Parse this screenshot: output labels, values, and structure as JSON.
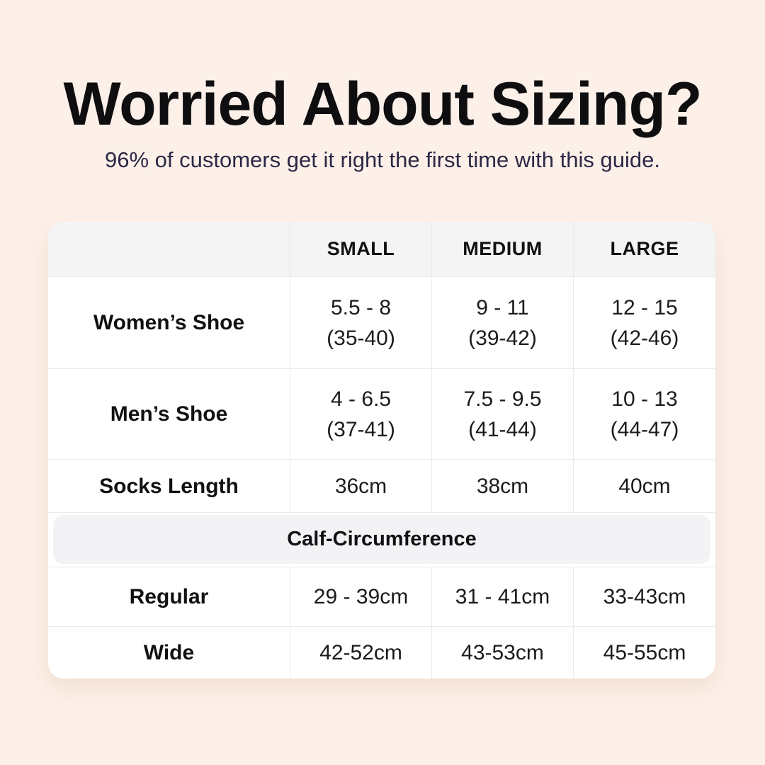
{
  "header": {
    "title": "Worried About Sizing?",
    "subtitle": "96% of customers get it right the first time with this guide."
  },
  "table": {
    "col_headers": [
      "SMALL",
      "MEDIUM",
      "LARGE"
    ],
    "rows": [
      {
        "label": "Women’s Shoe",
        "cells": [
          {
            "l1": "5.5 - 8",
            "l2": "(35-40)"
          },
          {
            "l1": "9 - 11",
            "l2": "(39-42)"
          },
          {
            "l1": "12 - 15",
            "l2": "(42-46)"
          }
        ]
      },
      {
        "label": "Men’s Shoe",
        "cells": [
          {
            "l1": "4 - 6.5",
            "l2": "(37-41)"
          },
          {
            "l1": "7.5 - 9.5",
            "l2": "(41-44)"
          },
          {
            "l1": "10 - 13",
            "l2": "(44-47)"
          }
        ]
      },
      {
        "label": "Socks Length",
        "cells": [
          {
            "l1": "36cm"
          },
          {
            "l1": "38cm"
          },
          {
            "l1": "40cm"
          }
        ]
      }
    ],
    "section_header": "Calf-Circumference",
    "calf_rows": [
      {
        "label": "Regular",
        "cells": [
          {
            "l1": "29 - 39cm"
          },
          {
            "l1": "31 - 41cm"
          },
          {
            "l1": "33-43cm"
          }
        ]
      },
      {
        "label": "Wide",
        "cells": [
          {
            "l1": "42-52cm"
          },
          {
            "l1": "43-53cm"
          },
          {
            "l1": "45-55cm"
          }
        ]
      }
    ]
  },
  "colors": {
    "bg": "#fdf0e8",
    "card": "#ffffff",
    "band": "#f4f4f5",
    "section": "#f3f2f4",
    "border": "#ebeaec",
    "title": "#0e0e10",
    "subtitle": "#2b2847",
    "text": "#1b1b1f",
    "label": "#111114"
  },
  "chart_data": {
    "type": "table",
    "title": "Worried About Sizing?",
    "subtitle": "96% of customers get it right the first time with this guide.",
    "columns": [
      "",
      "SMALL",
      "MEDIUM",
      "LARGE"
    ],
    "rows": [
      [
        "Women’s Shoe",
        "5.5 - 8 (35-40)",
        "9 - 11 (39-42)",
        "12 - 15 (42-46)"
      ],
      [
        "Men’s Shoe",
        "4 - 6.5 (37-41)",
        "7.5 - 9.5 (41-44)",
        "10 - 13 (44-47)"
      ],
      [
        "Socks Length",
        "36cm",
        "38cm",
        "40cm"
      ],
      [
        "Calf-Circumference",
        "",
        "",
        ""
      ],
      [
        "Regular",
        "29 - 39cm",
        "31 - 41cm",
        "33-43cm"
      ],
      [
        "Wide",
        "42-52cm",
        "43-53cm",
        "45-55cm"
      ]
    ],
    "layout": {
      "grid": true,
      "section_header_row_index": 3,
      "background": "#fdf0e8"
    }
  }
}
